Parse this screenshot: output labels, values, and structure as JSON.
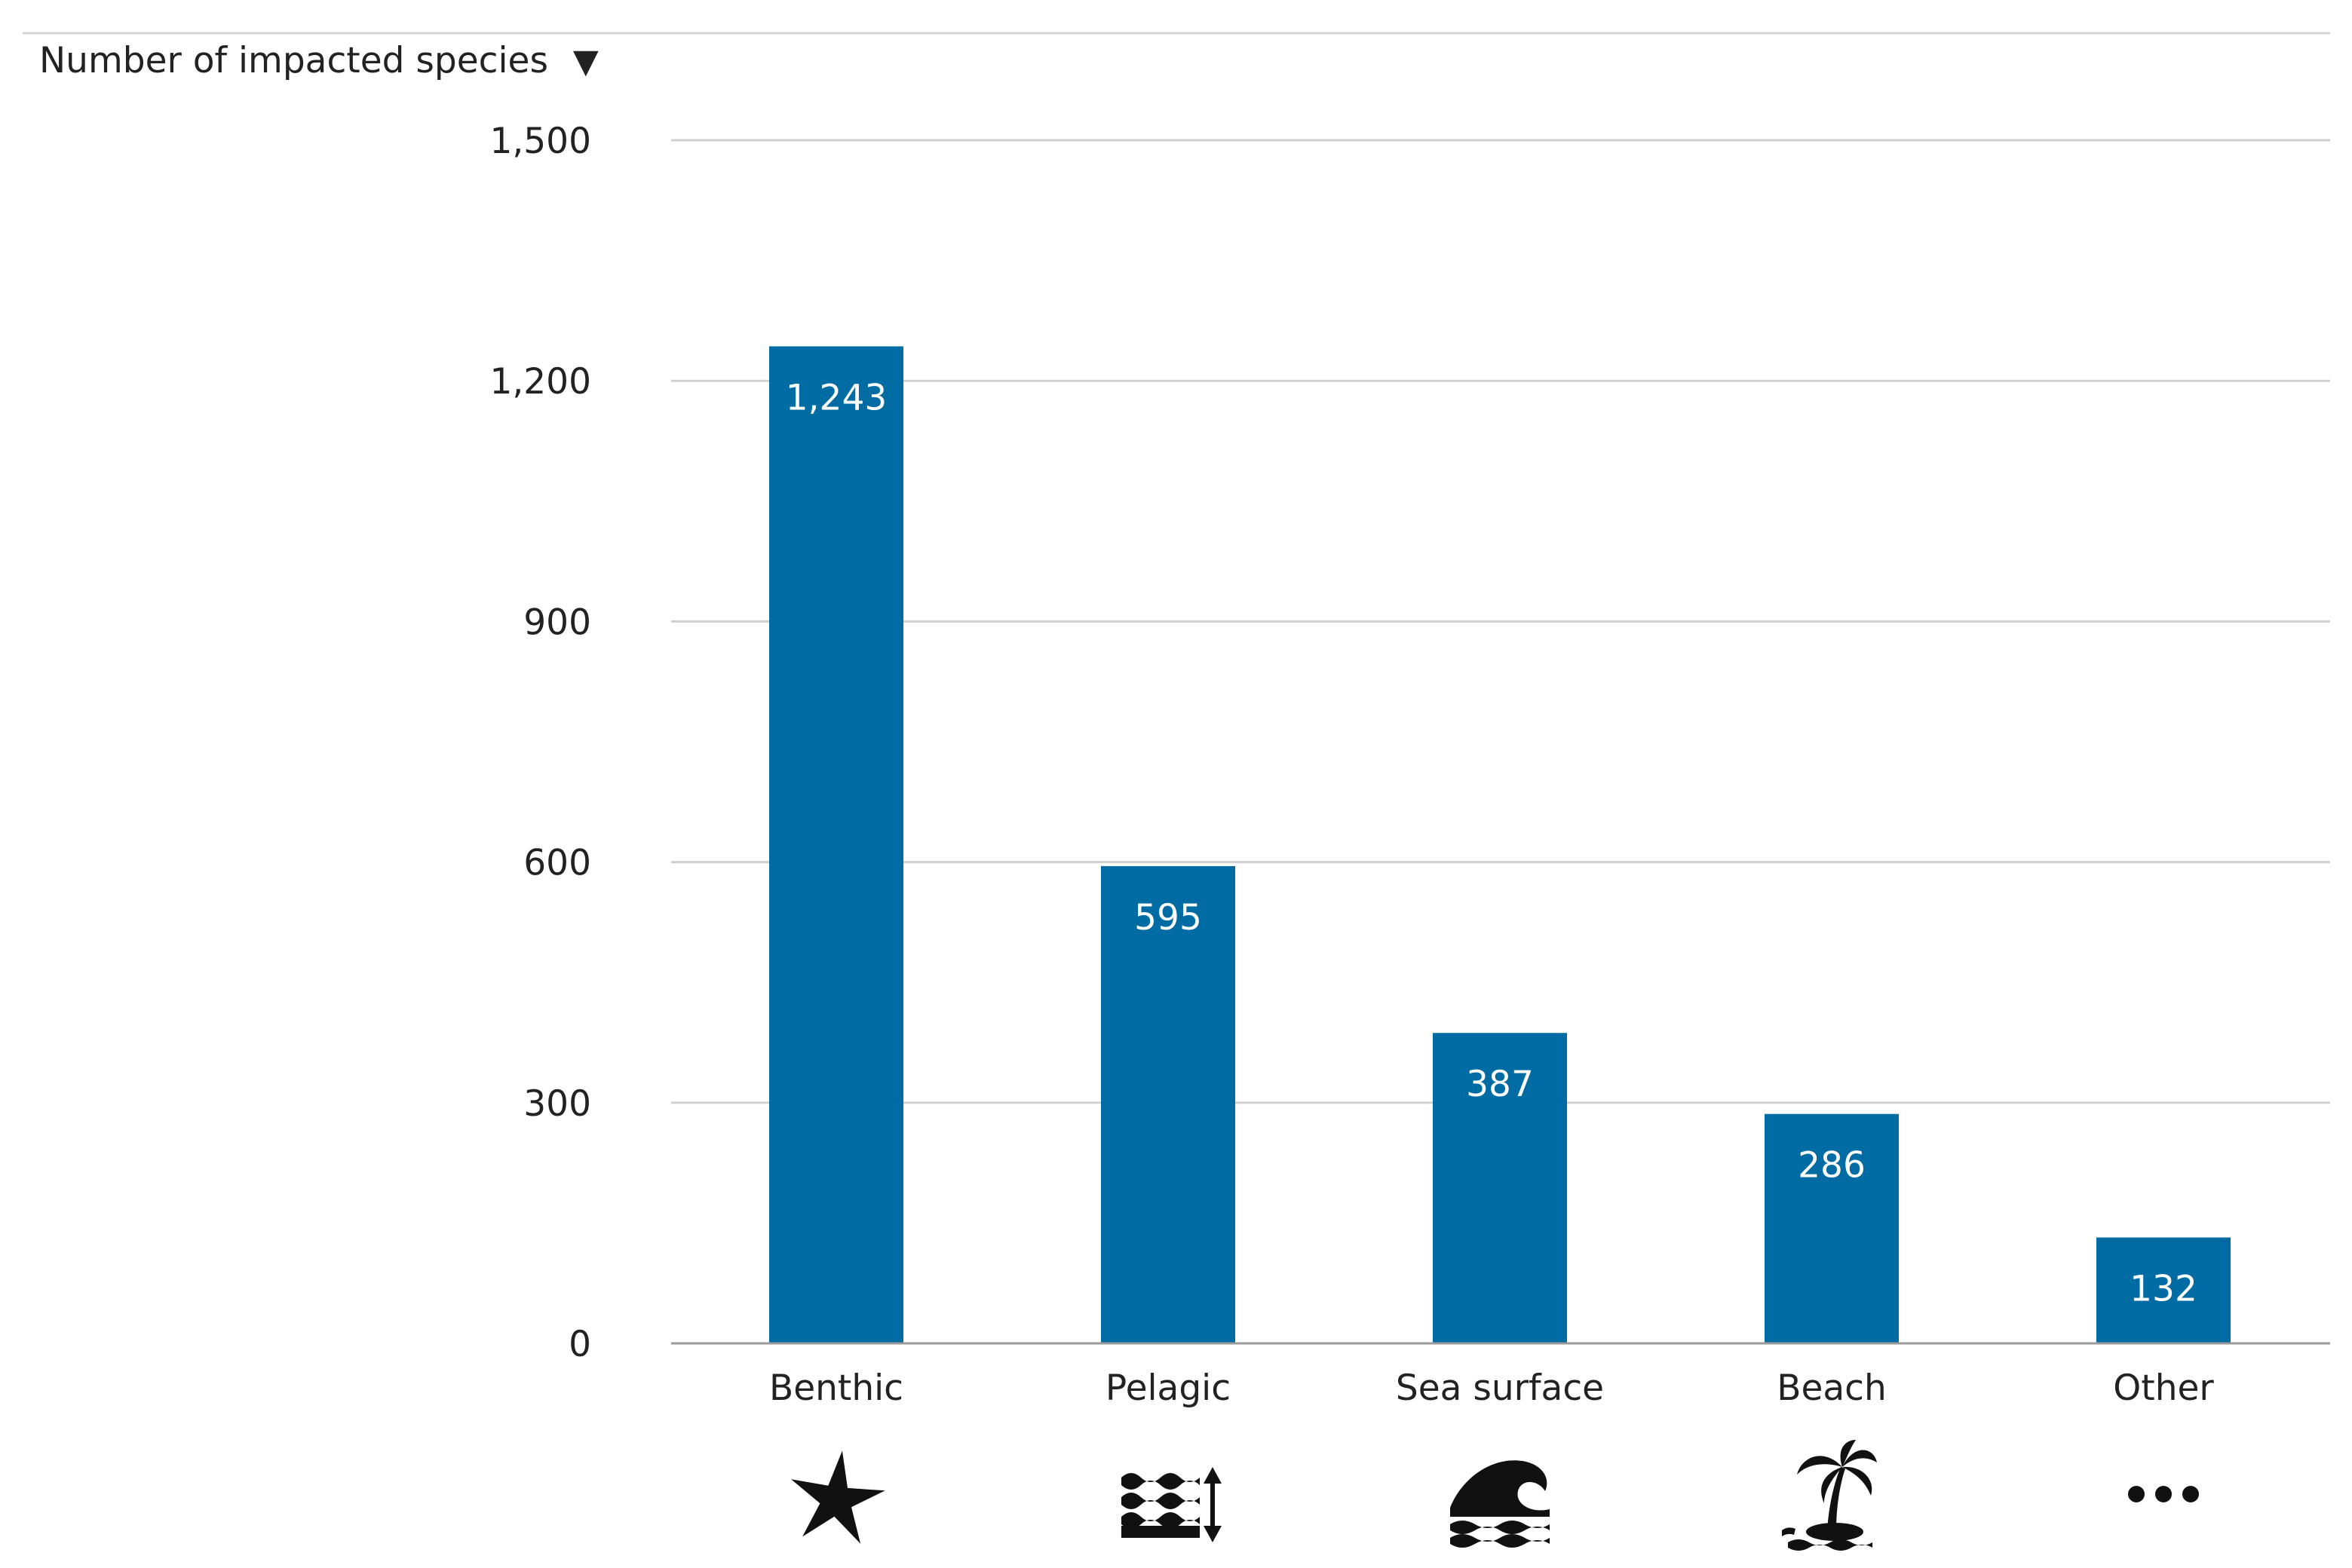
{
  "chart_data": {
    "type": "bar",
    "title": "",
    "ylabel": "Number of impacted species",
    "ylabel_marker": "▼",
    "xlabel": "",
    "categories": [
      "Benthic",
      "Pelagic",
      "Sea surface",
      "Beach",
      "Other"
    ],
    "values": [
      1243,
      595,
      387,
      286,
      132
    ],
    "value_labels": [
      "1,243",
      "595",
      "387",
      "286",
      "132"
    ],
    "category_icons": [
      "starfish-icon",
      "pelagic-waves-icon",
      "wave-icon",
      "palm-island-icon",
      "ellipsis-icon"
    ],
    "ylim": [
      0,
      1500
    ],
    "yticks": [
      0,
      300,
      600,
      900,
      1200,
      1500
    ],
    "ytick_labels": [
      "0",
      "300",
      "600",
      "900",
      "1,200",
      "1,500"
    ],
    "grid": true,
    "legend": "none",
    "colors": {
      "bar": "#006ca3",
      "bar_label": "#ffffff",
      "grid": "#cfcfcf",
      "baseline": "#9a9a9a",
      "text": "#222222",
      "icon": "#111111"
    }
  }
}
